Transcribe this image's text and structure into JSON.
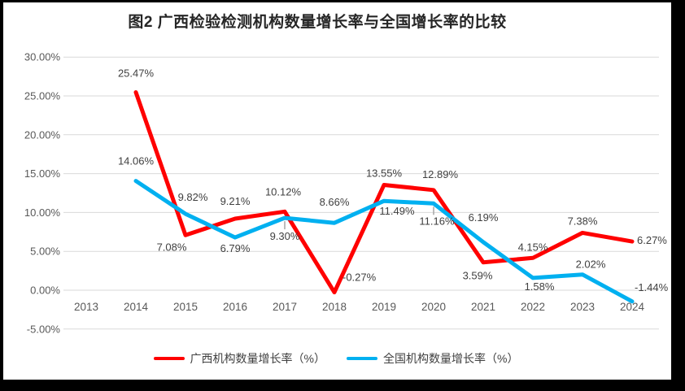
{
  "frame": {
    "border_color": "#000000",
    "background": "#ffffff"
  },
  "chart_data": {
    "type": "line",
    "title": "图2 广西检验检测机构数量增长率与全国增长率的比较",
    "xlabel": "",
    "ylabel": "",
    "categories": [
      "2013",
      "2014",
      "2015",
      "2016",
      "2017",
      "2018",
      "2019",
      "2020",
      "2021",
      "2022",
      "2023",
      "2024"
    ],
    "ylim": [
      -5,
      30
    ],
    "grid": true,
    "gridline_color": "#d9d9d9",
    "axis_label_color": "#595959",
    "data_label_color": "#404040",
    "leader_line_color": "#a6a6a6",
    "legend_position": "bottom",
    "yticks": [
      {
        "v": 30,
        "label": "30.00%"
      },
      {
        "v": 25,
        "label": "25.00%"
      },
      {
        "v": 20,
        "label": "20.00%"
      },
      {
        "v": 15,
        "label": "15.00%"
      },
      {
        "v": 10,
        "label": "10.00%"
      },
      {
        "v": 5,
        "label": "5.00%"
      },
      {
        "v": 0,
        "label": "0.00%"
      },
      {
        "v": -5,
        "label": "-5.00%"
      }
    ],
    "series": [
      {
        "name": "广西机构数量增长率（%）",
        "color": "#ff0000",
        "points": [
          null,
          {
            "v": 25.47,
            "label": "25.47%",
            "dx": 0,
            "dy": -19,
            "anchor": "middle"
          },
          {
            "v": 7.08,
            "label": "7.08%",
            "dx": -17,
            "dy": 19,
            "anchor": "middle"
          },
          {
            "v": 9.21,
            "label": "9.21%",
            "dx": 0,
            "dy": -17,
            "anchor": "middle"
          },
          {
            "v": 10.12,
            "label": "10.12%",
            "dx": -2,
            "dy": -20,
            "anchor": "middle"
          },
          {
            "v": -0.27,
            "label": "-0.27%",
            "dx": 10,
            "dy": -14,
            "anchor": "start"
          },
          {
            "v": 13.55,
            "label": "13.55%",
            "dx": 0,
            "dy": -10,
            "anchor": "middle"
          },
          {
            "v": 12.89,
            "label": "12.89%",
            "dx": 8,
            "dy": -15,
            "anchor": "middle"
          },
          {
            "v": 3.59,
            "label": "3.59%",
            "dx": -7,
            "dy": 21,
            "anchor": "middle"
          },
          {
            "v": 4.15,
            "label": "4.15%",
            "dx": 0,
            "dy": -9,
            "anchor": "middle"
          },
          {
            "v": 7.38,
            "label": "7.38%",
            "dx": 0,
            "dy": -10,
            "anchor": "middle"
          },
          {
            "v": 6.27,
            "label": "6.27%",
            "dx": 6,
            "dy": 3,
            "anchor": "start"
          }
        ]
      },
      {
        "name": "全国机构数量增长率（%）",
        "color": "#00b0f0",
        "points": [
          null,
          {
            "v": 14.06,
            "label": "14.06%",
            "dx": 0,
            "dy": -20,
            "anchor": "middle"
          },
          {
            "v": 9.82,
            "label": "9.82%",
            "dx": 9,
            "dy": -16,
            "anchor": "middle"
          },
          {
            "v": 6.79,
            "label": "6.79%",
            "dx": 0,
            "dy": 18,
            "anchor": "middle"
          },
          {
            "v": 9.3,
            "label": "9.30%",
            "dx": 0,
            "dy": 27,
            "anchor": "middle",
            "leader": true
          },
          {
            "v": 8.66,
            "label": "8.66%",
            "dx": 0,
            "dy": -21,
            "anchor": "middle"
          },
          {
            "v": 11.49,
            "label": "11.49%",
            "dx": 16,
            "dy": 17,
            "anchor": "middle"
          },
          {
            "v": 11.16,
            "label": "11.16%",
            "dx": 4,
            "dy": 26,
            "anchor": "middle",
            "leader": true
          },
          {
            "v": 6.19,
            "label": "6.19%",
            "dx": 0,
            "dy": -26,
            "anchor": "middle"
          },
          {
            "v": 1.58,
            "label": "1.58%",
            "dx": 8,
            "dy": 15,
            "anchor": "middle"
          },
          {
            "v": 2.02,
            "label": "2.02%",
            "dx": 10,
            "dy": -8,
            "anchor": "middle"
          },
          {
            "v": -1.44,
            "label": "-1.44%",
            "dx": 3,
            "dy": -13,
            "anchor": "start"
          }
        ]
      }
    ]
  }
}
